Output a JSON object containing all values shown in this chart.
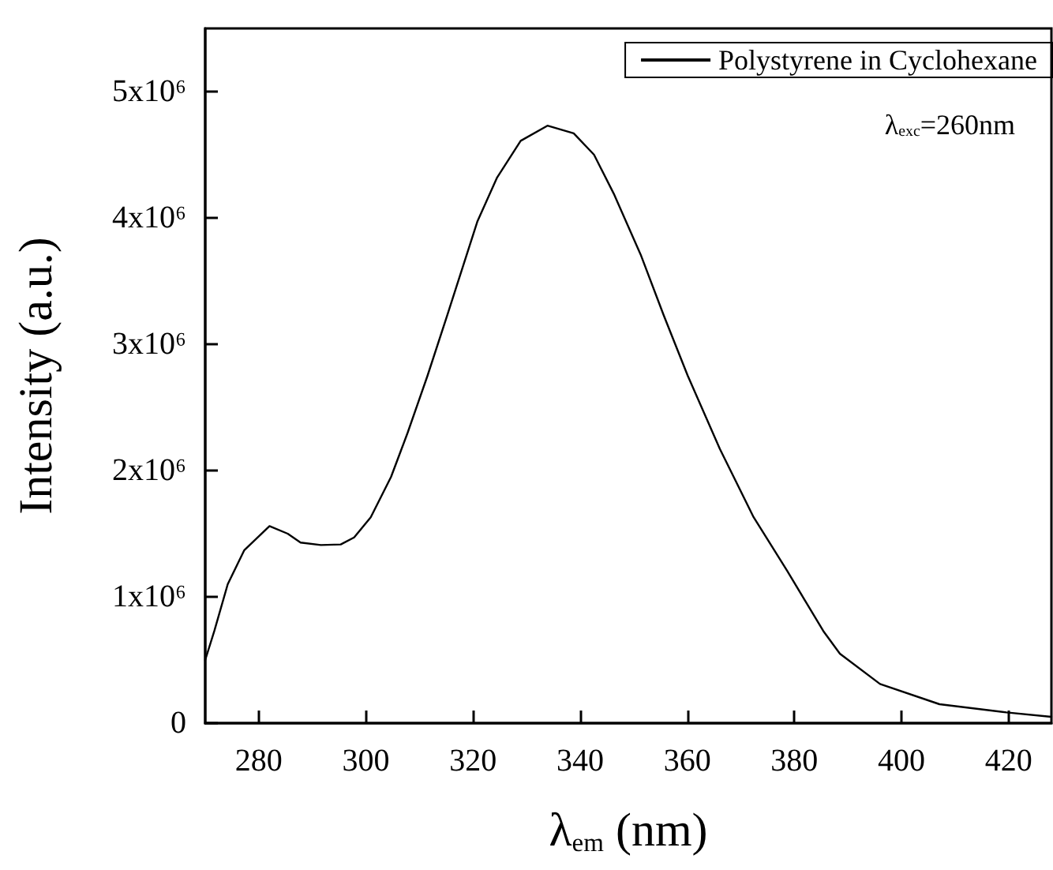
{
  "chart_data": {
    "type": "line",
    "xlabel": "λ$_{em}$ (nm)",
    "ylabel": "Intensity (a.u.)",
    "annotations": [
      "λ$_{exc}$=260nm"
    ],
    "xlim": [
      270,
      428
    ],
    "xticks": [
      280,
      300,
      320,
      340,
      360,
      380,
      400,
      420
    ],
    "ylim": [
      0,
      5500000
    ],
    "yticks": [
      0,
      {
        "value": 1000000,
        "label": "1x10⁶"
      },
      {
        "value": 2000000,
        "label": "2x10⁶"
      },
      {
        "value": 3000000,
        "label": "3x10⁶"
      },
      {
        "value": 4000000,
        "label": "4x10⁶"
      },
      {
        "value": 5000000,
        "label": "5x10⁶"
      }
    ],
    "legend": "top right",
    "marker": "none",
    "line_style": "solid",
    "grid": false,
    "series": [
      {
        "name": "Polystyrene in Cyclohexane",
        "color": "#000000",
        "x": [
          270,
          271.7,
          274.2,
          277.3,
          282,
          285.4,
          287.8,
          291.6,
          295.3,
          297.8,
          300.9,
          304.7,
          307.8,
          311.5,
          315.2,
          320.8,
          324.5,
          328.9,
          333.9,
          338.8,
          342.6,
          346.3,
          351.3,
          355.6,
          360.1,
          366.1,
          372.4,
          378.6,
          385.4,
          388.5,
          396,
          407.1,
          419.6,
          428
        ],
        "values": [
          500000,
          730000,
          1100000,
          1370000,
          1560000,
          1500000,
          1430000,
          1410000,
          1415000,
          1470000,
          1630000,
          1950000,
          2300000,
          2750000,
          3230000,
          3970000,
          4320000,
          4610000,
          4730000,
          4670000,
          4500000,
          4190000,
          3710000,
          3230000,
          2750000,
          2170000,
          1630000,
          1210000,
          730000,
          550000,
          310000,
          150000,
          85000,
          50000
        ]
      }
    ]
  }
}
